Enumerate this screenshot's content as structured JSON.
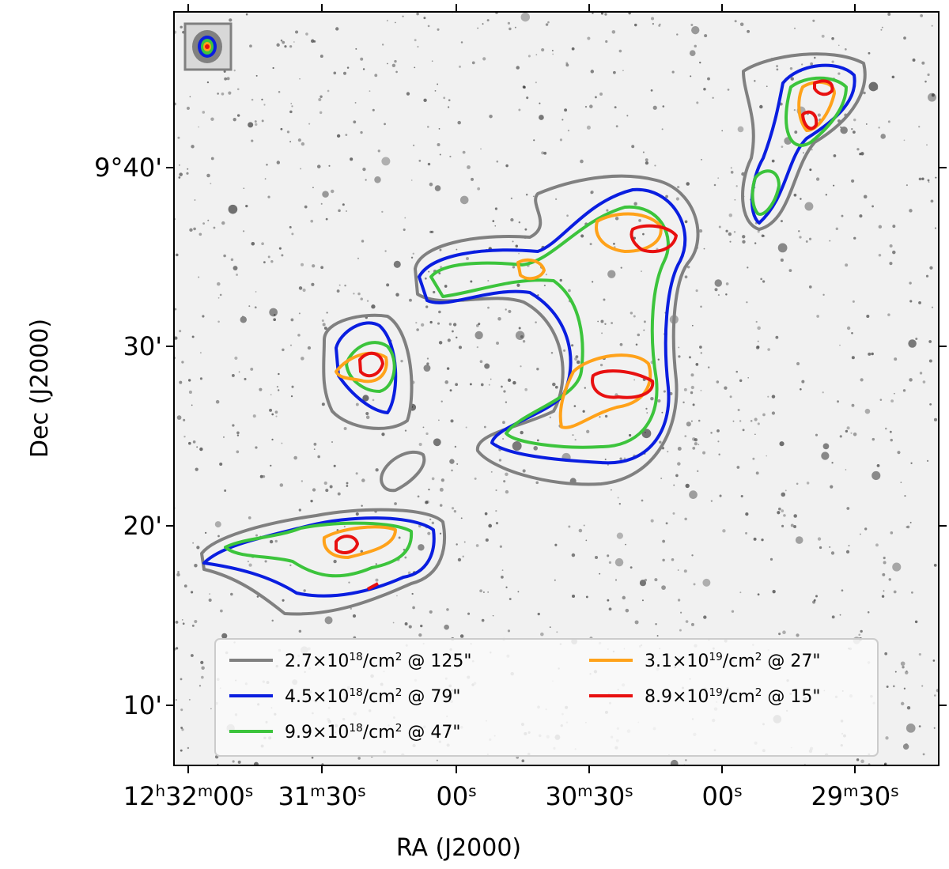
{
  "chart_data": {
    "type": "contour",
    "xlabel": "RA (J2000)",
    "ylabel": "Dec (J2000)",
    "xticks": [
      [
        {
          "text": "12",
          "sup": "h"
        },
        {
          "text": "32",
          "sup": "m"
        },
        {
          "text": "00",
          "sup": "s"
        }
      ],
      [
        {
          "text": "31",
          "sup": "m"
        },
        {
          "text": "30",
          "sup": "s"
        }
      ],
      [
        {
          "text": "00",
          "sup": "s"
        }
      ],
      [
        {
          "text": "30",
          "sup": "m"
        },
        {
          "text": "30",
          "sup": "s"
        }
      ],
      [
        {
          "text": "00",
          "sup": "s"
        }
      ],
      [
        {
          "text": "29",
          "sup": "m"
        },
        {
          "text": "30",
          "sup": "s"
        }
      ]
    ],
    "yticks": [
      "9°40'",
      "30'",
      "20'",
      "10'"
    ],
    "series": [
      {
        "name": [
          {
            "text": "2.7×10",
            "sup": "18"
          },
          {
            "text": "/cm",
            "sup": "2"
          },
          {
            "text": " @ 125\""
          }
        ],
        "color": "#808080"
      },
      {
        "name": [
          {
            "text": "4.5×10",
            "sup": "18"
          },
          {
            "text": "/cm",
            "sup": "2"
          },
          {
            "text": " @ 79\""
          }
        ],
        "color": "#0a1ee0"
      },
      {
        "name": [
          {
            "text": "9.9×10",
            "sup": "18"
          },
          {
            "text": "/cm",
            "sup": "2"
          },
          {
            "text": " @ 47\""
          }
        ],
        "color": "#3cc43c"
      },
      {
        "name": [
          {
            "text": "3.1×10",
            "sup": "19"
          },
          {
            "text": "/cm",
            "sup": "2"
          },
          {
            "text": " @ 27\""
          }
        ],
        "color": "#ffa21a"
      },
      {
        "name": [
          {
            "text": "8.9×10",
            "sup": "19"
          },
          {
            "text": "/cm",
            "sup": "2"
          },
          {
            "text": " @ 15\""
          }
        ],
        "color": "#e81010"
      }
    ]
  }
}
